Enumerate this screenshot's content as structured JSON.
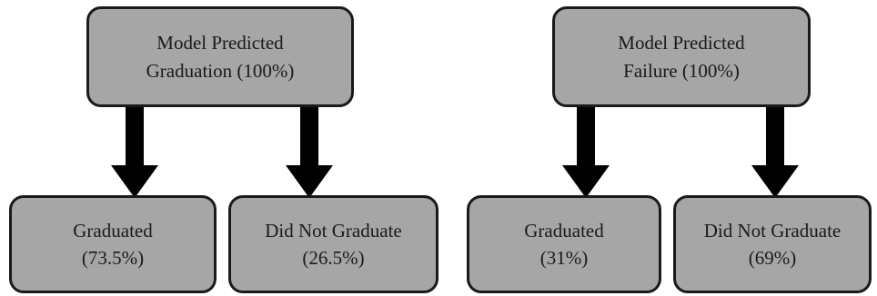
{
  "diagrams": [
    {
      "parent": {
        "line1": "Model Predicted",
        "line2": "Graduation (100%)"
      },
      "children": [
        {
          "line1": "Graduated",
          "line2": "(73.5%)"
        },
        {
          "line1": "Did Not Graduate",
          "line2": "(26.5%)"
        }
      ]
    },
    {
      "parent": {
        "line1": "Model Predicted",
        "line2": "Failure (100%)"
      },
      "children": [
        {
          "line1": "Graduated",
          "line2": "(31%)"
        },
        {
          "line1": "Did Not Graduate",
          "line2": "(69%)"
        }
      ]
    }
  ],
  "colors": {
    "box_fill": "#a6a6a6",
    "border": "#1a1a1a",
    "arrow": "#000000",
    "background": "#ffffff"
  },
  "icons": [
    "down-arrow-icon"
  ]
}
